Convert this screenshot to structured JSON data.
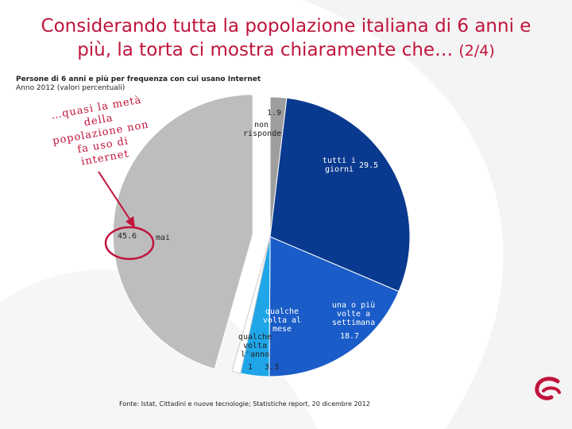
{
  "title_line1": "Considerando tutta la popolazione italiana di 6 anni e",
  "title_line2": "più, la torta ci mostra chiaramente che…",
  "title_page": "(2/4)",
  "subtitle_line1": "Persone di 6 anni e più per frequenza con cui usano Internet",
  "subtitle_line2": "Anno 2012 (valori percentuali)",
  "annotation": "…quasi la metà\ndella\npopolazione non\nfa uso di\ninternet",
  "source": "Fonte: Istat, Cittadini e nuove tecnologie; Statistiche report, 20 dicembre 2012",
  "colors": {
    "title": "#c0143c",
    "accent": "#c0143c",
    "tutti": "#0a3a8f",
    "settimana": "#1a5cc8",
    "mese": "#1ea6e8",
    "anno": "#ffffff",
    "mai": "#bdbdbd",
    "non_risponde": "#9e9e9e"
  },
  "chart_data": {
    "type": "pie",
    "slices": [
      {
        "label": "non\nrisponde",
        "value": 1.9,
        "value_label": "1.9",
        "color": "#9e9e9e"
      },
      {
        "label": "tutti i\ngiorni",
        "value": 29.5,
        "value_label": "29.5",
        "color": "#0a3a8f"
      },
      {
        "label": "una o più\nvolte a\nsettimana",
        "value": 18.7,
        "value_label": "18.7",
        "color": "#1a5cc8"
      },
      {
        "label": "qualche\nvolta al\nmese",
        "value": 3.3,
        "value_label": "3.3",
        "color": "#1ea6e8"
      },
      {
        "label": "qualche\nvolta\nl'anno",
        "value": 1,
        "value_label": "1",
        "color": "#ffffff"
      },
      {
        "label": "mai",
        "value": 45.6,
        "value_label": "45.6",
        "color": "#bdbdbd"
      }
    ]
  }
}
